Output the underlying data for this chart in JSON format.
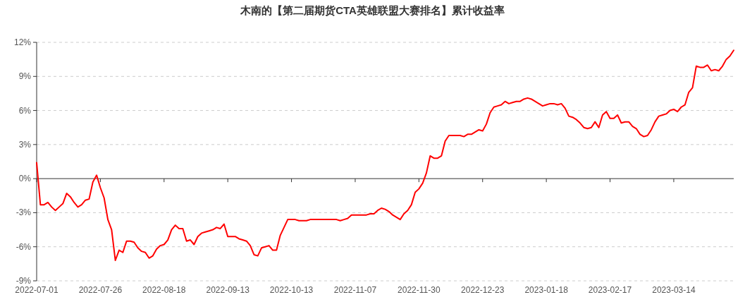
{
  "chart_data": {
    "type": "line",
    "title": "木南的【第二届期货CTA英雄联盟大赛排名】累计收益率",
    "categories": [
      "2022-07-01",
      null,
      null,
      null,
      null,
      null,
      null,
      null,
      null,
      null,
      null,
      null,
      null,
      null,
      null,
      null,
      null,
      "2022-07-26",
      null,
      null,
      null,
      null,
      null,
      null,
      null,
      null,
      null,
      null,
      null,
      null,
      null,
      null,
      null,
      null,
      "2022-08-18",
      null,
      null,
      null,
      null,
      null,
      null,
      null,
      null,
      null,
      null,
      null,
      null,
      null,
      null,
      null,
      null,
      "2022-09-13",
      null,
      null,
      null,
      null,
      null,
      null,
      null,
      null,
      null,
      null,
      null,
      null,
      null,
      null,
      null,
      null,
      "2022-10-13",
      null,
      null,
      null,
      null,
      null,
      null,
      null,
      null,
      null,
      null,
      null,
      null,
      null,
      null,
      null,
      null,
      "2022-11-07",
      null,
      null,
      null,
      null,
      null,
      null,
      null,
      null,
      null,
      null,
      null,
      null,
      null,
      null,
      null,
      null,
      "2022-11-30",
      null,
      null,
      null,
      null,
      null,
      null,
      null,
      null,
      null,
      null,
      null,
      null,
      null,
      null,
      null,
      null,
      "2022-12-23",
      null,
      null,
      null,
      null,
      null,
      null,
      null,
      null,
      null,
      null,
      null,
      null,
      null,
      null,
      null,
      null,
      "2023-01-18",
      null,
      null,
      null,
      null,
      null,
      null,
      null,
      null,
      null,
      null,
      null,
      null,
      null,
      null,
      null,
      null,
      "2023-02-17",
      null,
      null,
      null,
      null,
      null,
      null,
      null,
      null,
      null,
      null,
      null,
      null,
      null,
      null,
      null,
      null,
      "2023-03-14",
      null,
      null,
      null,
      null,
      null,
      null,
      null,
      null,
      null,
      null,
      null,
      null,
      null,
      null,
      null,
      null
    ],
    "series": [
      {
        "color": "#ff0000",
        "values": [
          1.4,
          -2.3,
          -2.3,
          -2.1,
          -2.5,
          -2.8,
          -2.5,
          -2.2,
          -1.3,
          -1.6,
          -2.1,
          -2.5,
          -2.3,
          -1.9,
          -1.8,
          -0.3,
          0.3,
          -0.8,
          -1.7,
          -3.6,
          -4.5,
          -7.2,
          -6.3,
          -6.5,
          -5.5,
          -5.5,
          -5.6,
          -6.1,
          -6.4,
          -6.5,
          -7.0,
          -6.8,
          -6.2,
          -5.9,
          -5.8,
          -5.4,
          -4.5,
          -4.1,
          -4.4,
          -4.4,
          -5.5,
          -5.4,
          -5.8,
          -5.1,
          -4.8,
          -4.7,
          -4.6,
          -4.5,
          -4.3,
          -4.4,
          -4.0,
          -5.1,
          -5.1,
          -5.1,
          -5.3,
          -5.4,
          -5.5,
          -5.9,
          -6.7,
          -6.8,
          -6.1,
          -6.0,
          -5.9,
          -6.3,
          -6.3,
          -5.0,
          -4.3,
          -3.6,
          -3.6,
          -3.6,
          -3.7,
          -3.7,
          -3.7,
          -3.6,
          -3.6,
          -3.6,
          -3.6,
          -3.6,
          -3.6,
          -3.6,
          -3.6,
          -3.7,
          -3.6,
          -3.5,
          -3.2,
          -3.2,
          -3.2,
          -3.2,
          -3.2,
          -3.1,
          -3.1,
          -2.8,
          -2.6,
          -2.7,
          -2.9,
          -3.2,
          -3.4,
          -3.6,
          -3.1,
          -2.8,
          -2.3,
          -1.2,
          -0.9,
          -0.4,
          0.5,
          2.0,
          1.8,
          1.8,
          2.0,
          3.3,
          3.8,
          3.8,
          3.8,
          3.8,
          3.7,
          3.9,
          3.9,
          4.1,
          4.3,
          4.2,
          4.8,
          5.8,
          6.3,
          6.4,
          6.5,
          6.8,
          6.6,
          6.7,
          6.8,
          6.8,
          7.0,
          7.1,
          7.0,
          6.8,
          6.6,
          6.4,
          6.5,
          6.6,
          6.6,
          6.5,
          6.6,
          6.2,
          5.5,
          5.4,
          5.2,
          4.9,
          4.5,
          4.4,
          4.5,
          5.0,
          4.5,
          5.6,
          5.9,
          5.3,
          5.3,
          5.6,
          4.9,
          5.0,
          5.0,
          4.6,
          4.4,
          3.9,
          3.7,
          3.8,
          4.3,
          5.0,
          5.5,
          5.6,
          5.7,
          6.0,
          6.1,
          5.9,
          6.3,
          6.5,
          7.6,
          8.0,
          9.9,
          9.8,
          9.8,
          10.0,
          9.5,
          9.6,
          9.5,
          9.9,
          10.5,
          10.8,
          11.3
        ]
      }
    ],
    "ylim": [
      -9,
      12
    ],
    "yticks": [
      {
        "value": -9,
        "label": "-9%"
      },
      {
        "value": -6,
        "label": "-6%"
      },
      {
        "value": -3,
        "label": "-3%"
      },
      {
        "value": 0,
        "label": "0%"
      },
      {
        "value": 3,
        "label": "3%"
      },
      {
        "value": 6,
        "label": "6%"
      },
      {
        "value": 9,
        "label": "9%"
      },
      {
        "value": 12,
        "label": "12%"
      }
    ],
    "grid": "y",
    "line_style": "solid"
  }
}
